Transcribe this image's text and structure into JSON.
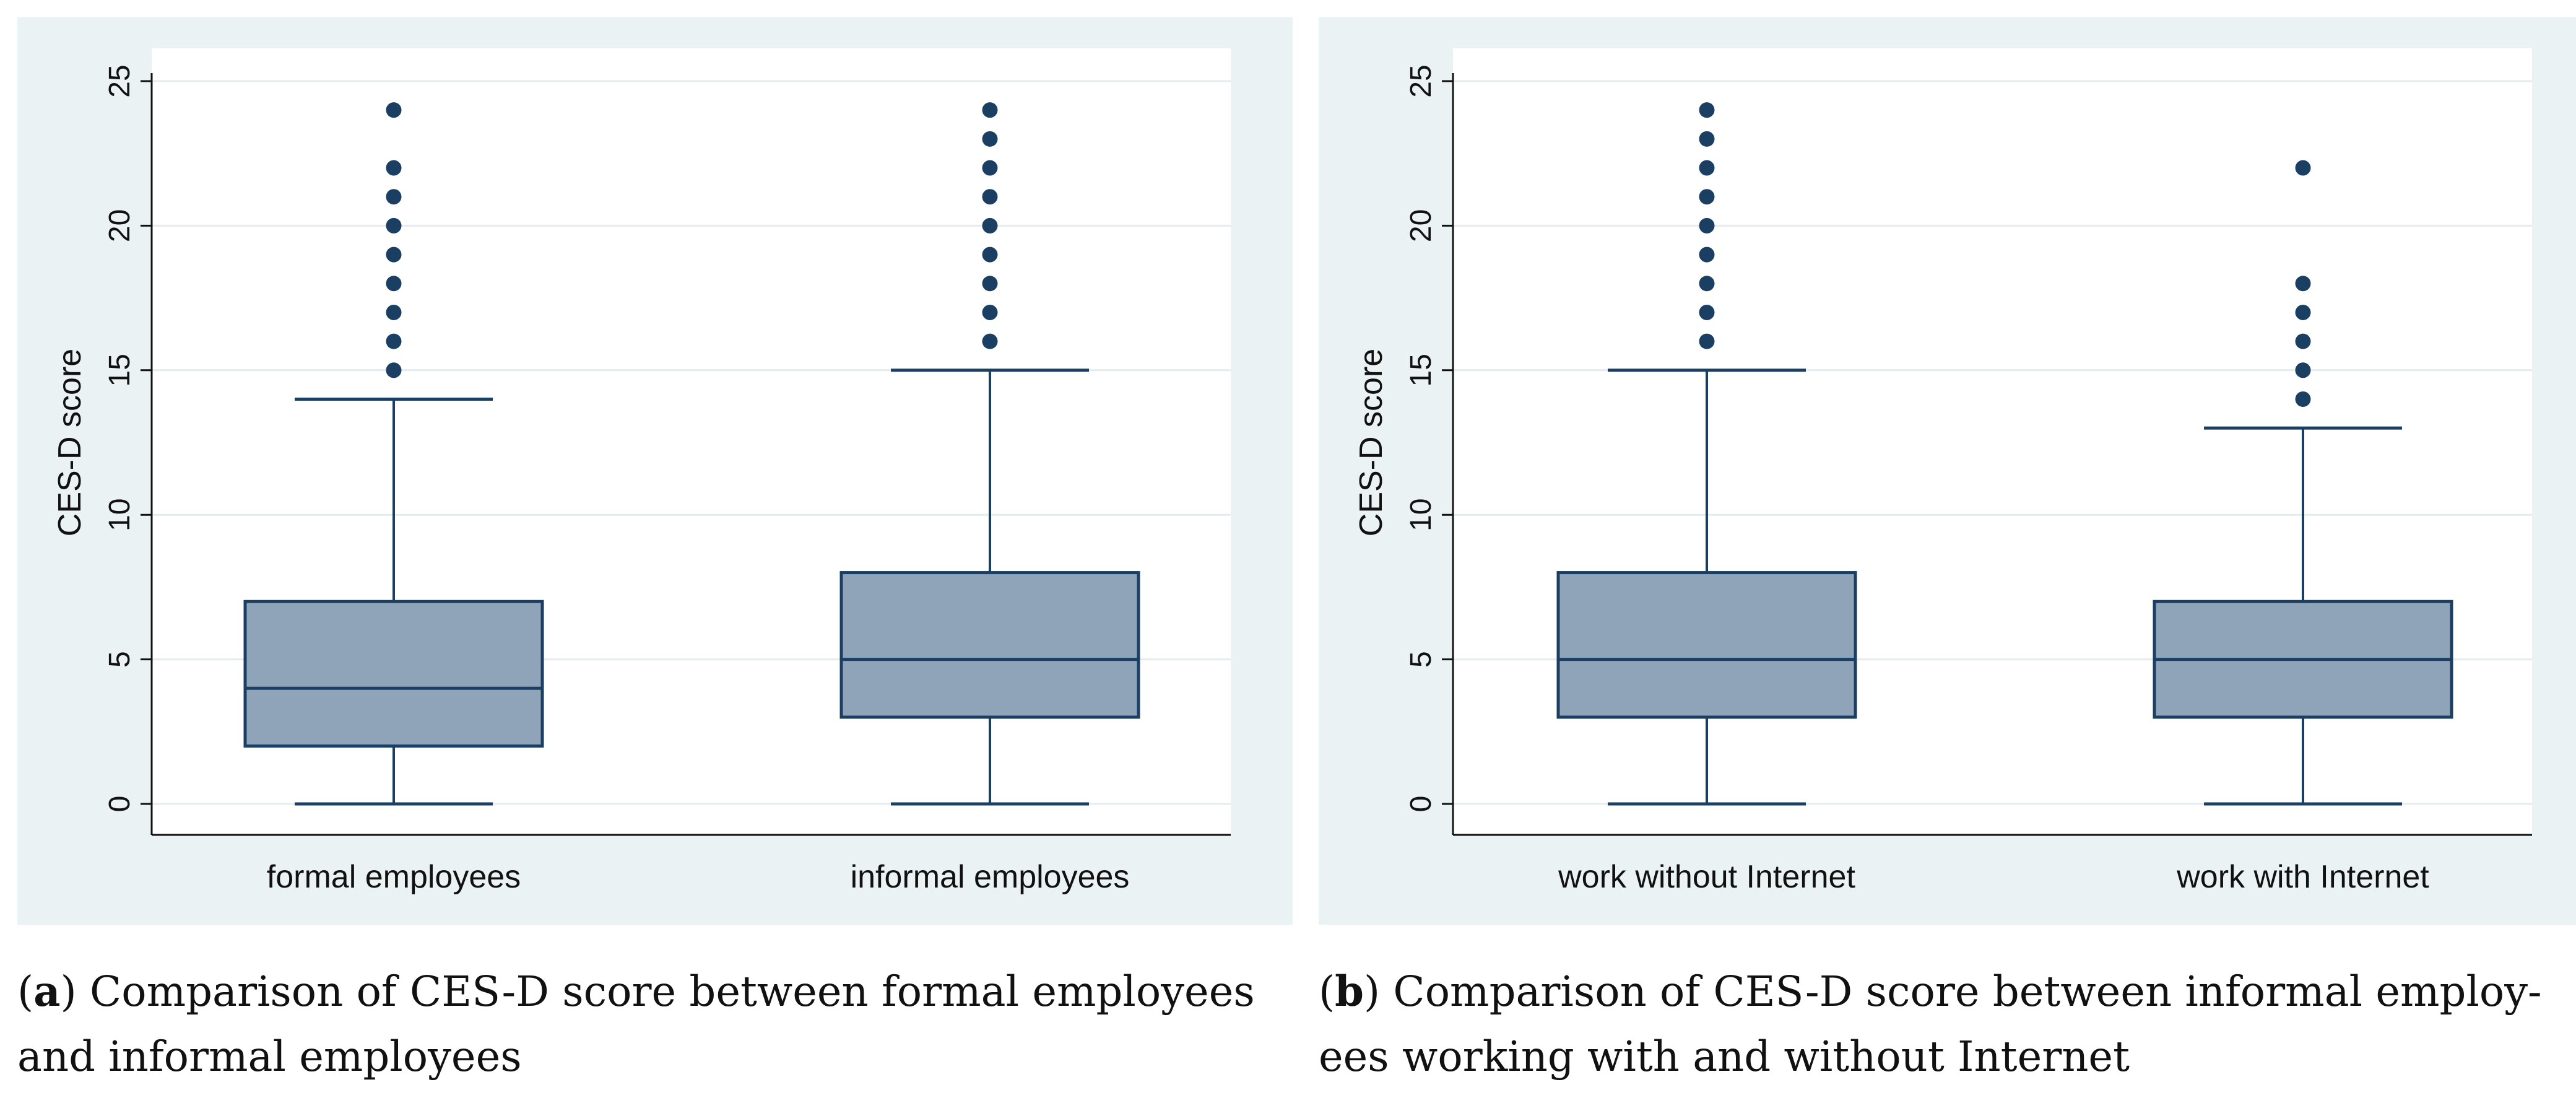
{
  "chart_data": [
    {
      "type": "box",
      "ylabel": "CES-D score",
      "ylim": [
        0,
        25
      ],
      "yticks": [
        0,
        5,
        10,
        15,
        20,
        25
      ],
      "grid": true,
      "categories": [
        "formal employees",
        "informal employees"
      ],
      "boxes": [
        {
          "name": "formal employees",
          "whisker_low": 0,
          "q1": 2,
          "median": 4,
          "q3": 7,
          "whisker_high": 14,
          "outliers": [
            15,
            16,
            17,
            18,
            19,
            20,
            21,
            22,
            24
          ]
        },
        {
          "name": "informal employees",
          "whisker_low": 0,
          "q1": 3,
          "median": 5,
          "q3": 8,
          "whisker_high": 15,
          "outliers": [
            16,
            17,
            18,
            19,
            20,
            21,
            22,
            23,
            24
          ]
        }
      ]
    },
    {
      "type": "box",
      "ylabel": "CES-D score",
      "ylim": [
        0,
        25
      ],
      "yticks": [
        0,
        5,
        10,
        15,
        20,
        25
      ],
      "grid": true,
      "categories": [
        "work without Internet",
        "work with Internet"
      ],
      "boxes": [
        {
          "name": "work without Internet",
          "whisker_low": 0,
          "q1": 3,
          "median": 5,
          "q3": 8,
          "whisker_high": 15,
          "outliers": [
            16,
            17,
            18,
            19,
            20,
            21,
            22,
            23,
            24
          ]
        },
        {
          "name": "work with Internet",
          "whisker_low": 0,
          "q1": 3,
          "median": 5,
          "q3": 7,
          "whisker_high": 13,
          "outliers": [
            14,
            15,
            16,
            17,
            18,
            22
          ]
        }
      ]
    }
  ],
  "captions": {
    "a": {
      "label": "a",
      "text": ") Comparison of CES-D score between formal employees and informal employees"
    },
    "b": {
      "label": "b",
      "text": ") Comparison of CES-D score between informal employ-ees working with and without Internet"
    }
  },
  "colors": {
    "box_fill": "#8fa4b8",
    "box_stroke": "#1b3f63",
    "outlier": "#1b3f63",
    "grid": "#e4ecee",
    "panel_bg": "#eaf2f3"
  }
}
